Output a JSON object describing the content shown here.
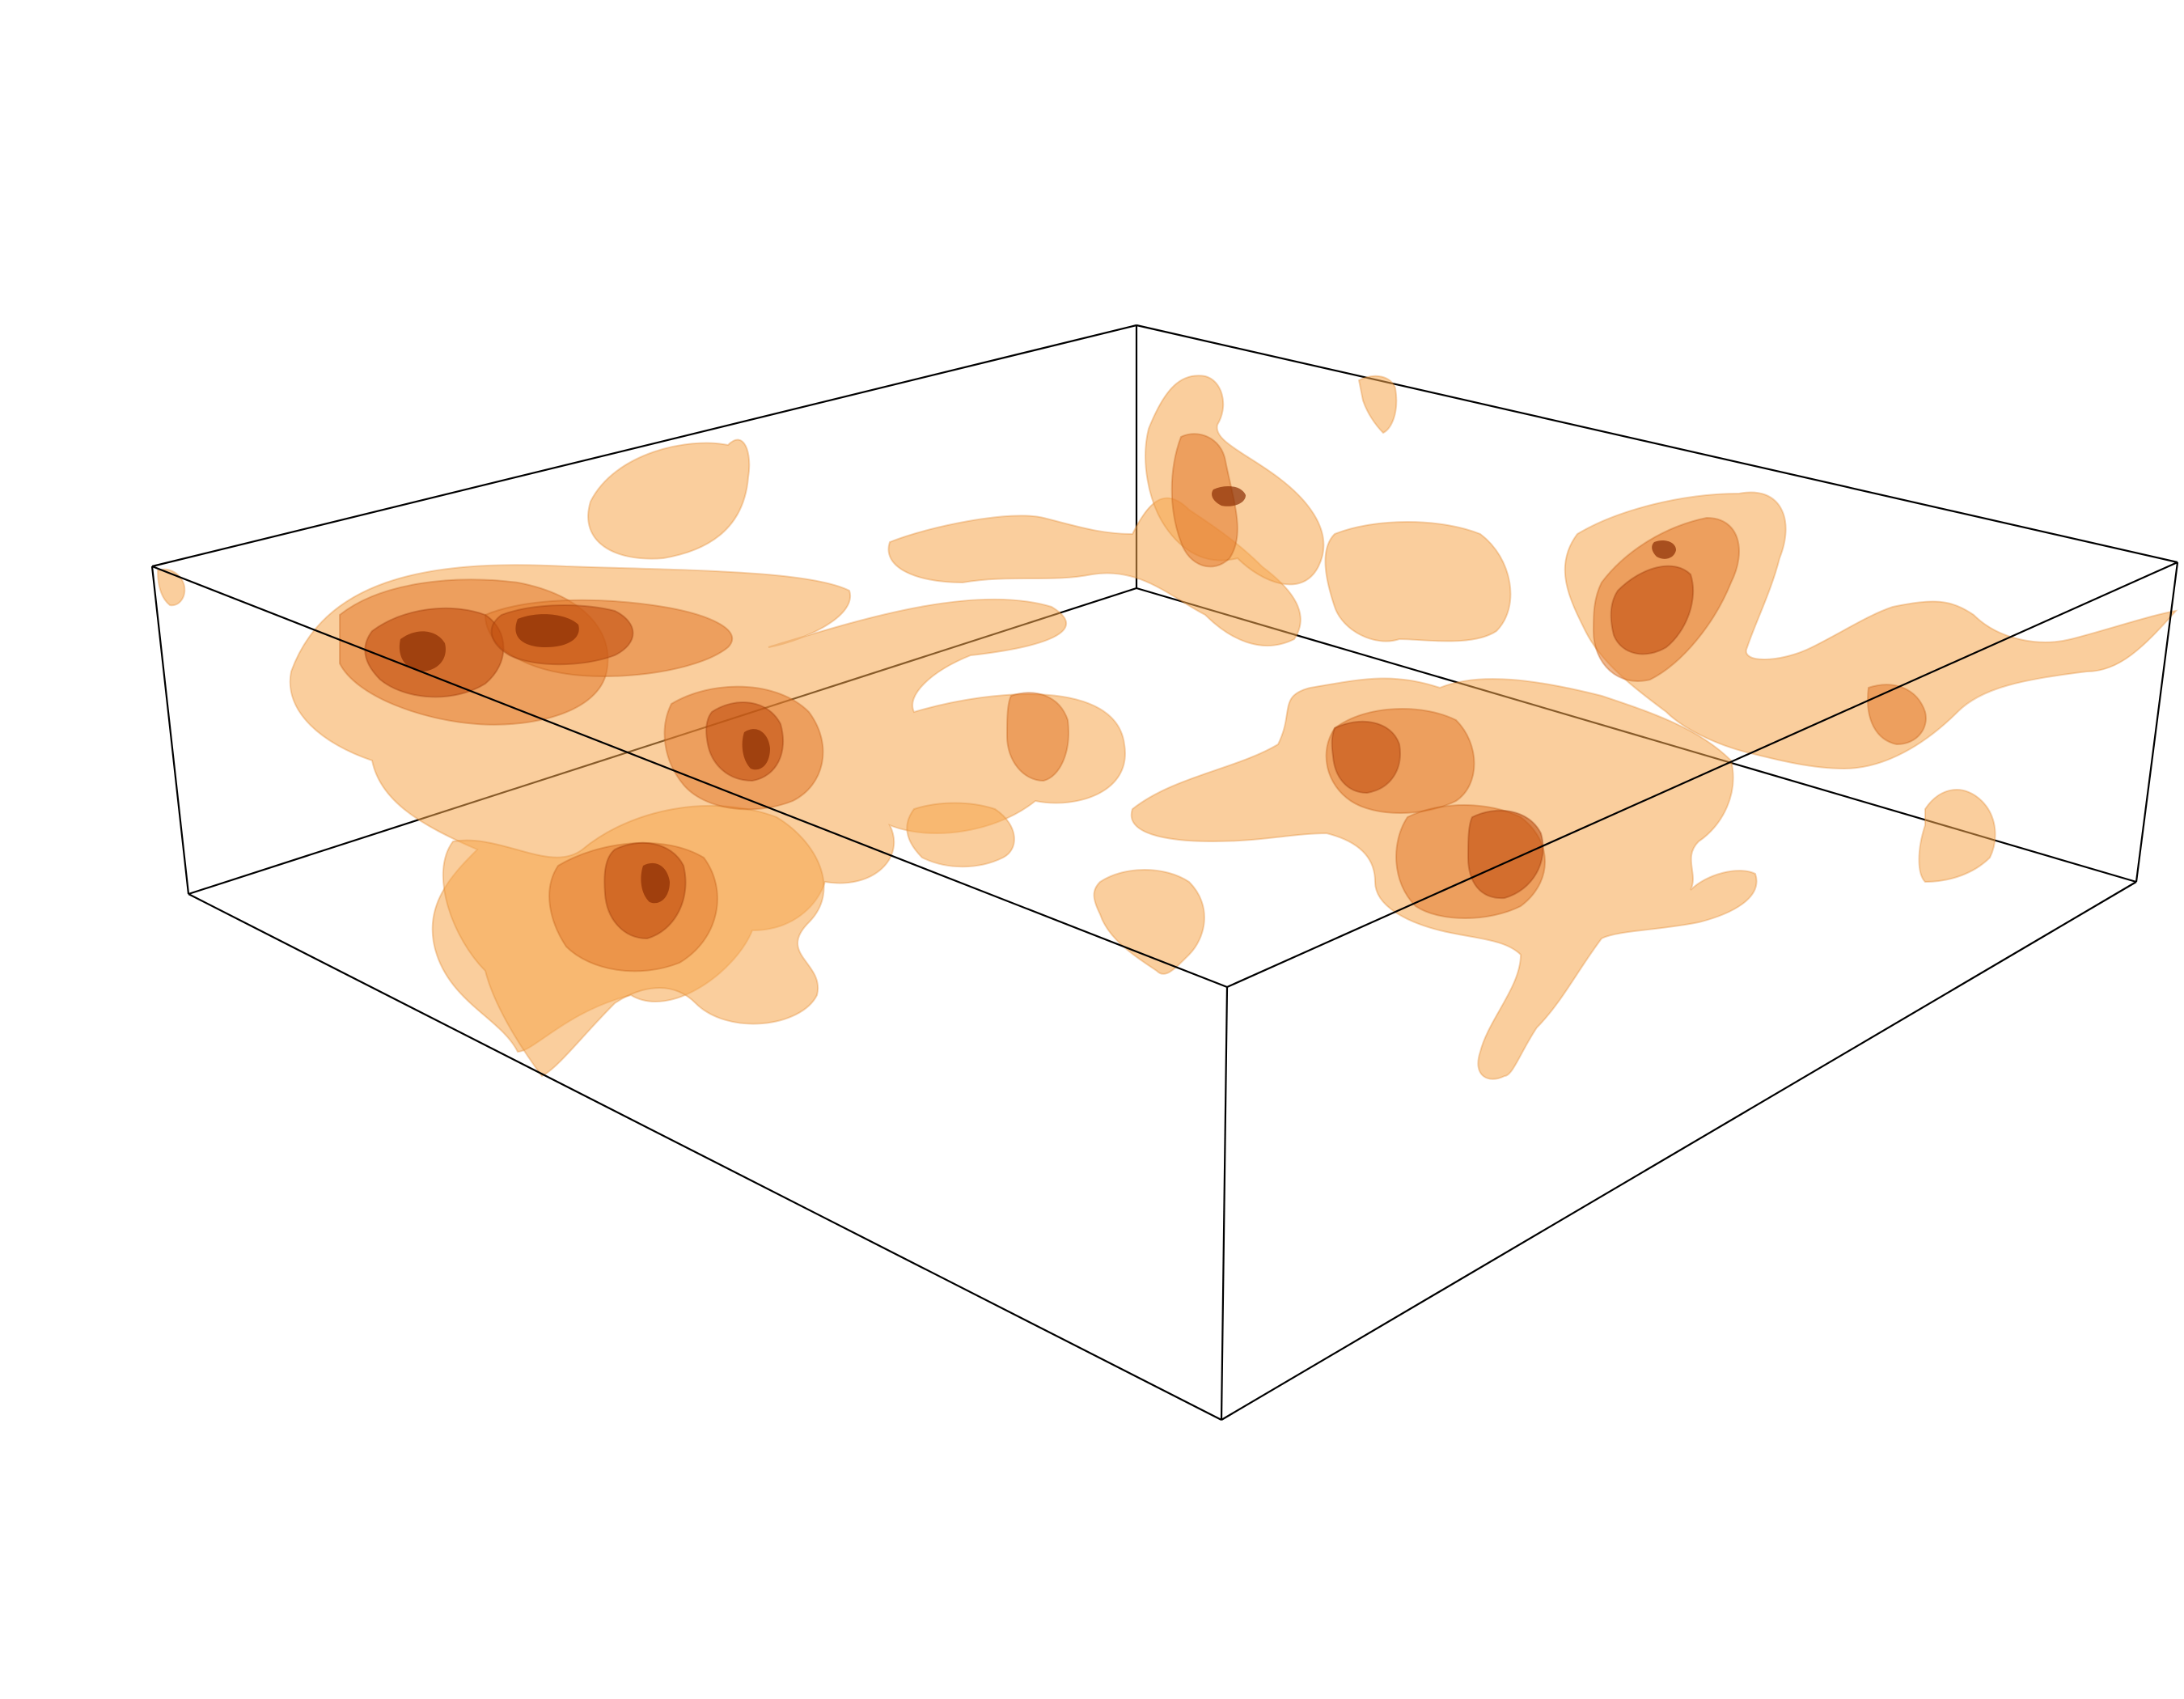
{
  "figure": {
    "kind": "3d-isosurface-render",
    "background": "#ffffff",
    "box_edge_color": "#000000",
    "palette": {
      "outer_shell": "#f6a64c",
      "middle_shell": "#e2782a",
      "inner_shell": "#c24e0f",
      "core": "#8a2d03"
    },
    "isosurface_levels": 4
  }
}
